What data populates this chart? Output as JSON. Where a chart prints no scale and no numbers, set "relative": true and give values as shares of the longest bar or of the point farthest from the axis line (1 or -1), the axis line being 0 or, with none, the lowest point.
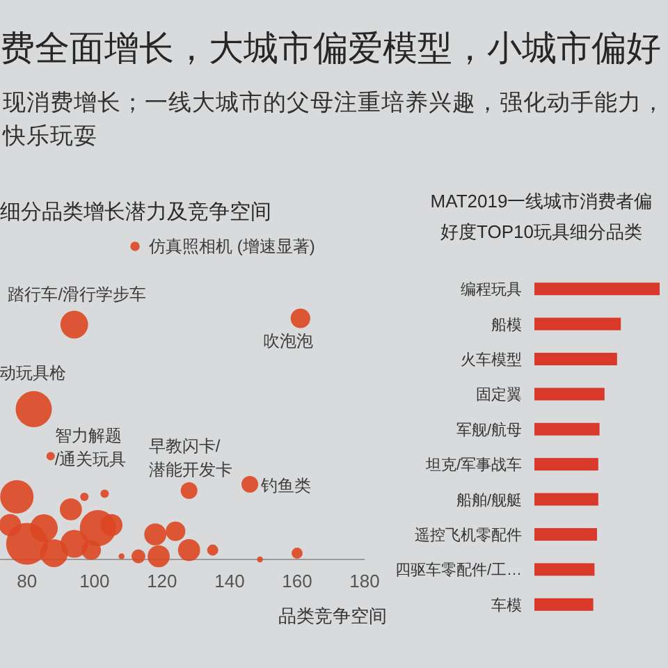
{
  "chart_data": [
    {
      "type": "other",
      "title": "费全面增长，大城市偏爱模型，小城市偏好",
      "subtitle": "现消费增长；一线大城市的父母注重培养兴趣，强化动手能力，快乐玩耍"
    },
    {
      "type": "bubble",
      "title": "细分品类增长潜力及竞争空间",
      "xlabel": "品类竞争空间",
      "relative": true,
      "color": "#dc4622",
      "x": [
        112,
        94,
        161,
        82,
        87,
        128,
        146,
        77,
        103,
        97,
        93,
        101,
        105,
        85,
        80,
        75,
        94,
        108,
        113,
        118,
        124,
        119,
        128,
        135,
        149,
        160,
        88,
        99
      ],
      "values": [
        1.0,
        0.75,
        0.77,
        0.48,
        0.33,
        0.22,
        0.24,
        0.2,
        0.21,
        0.2,
        0.16,
        0.1,
        0.11,
        0.1,
        0.05,
        0.11,
        0.05,
        0.01,
        0.01,
        0.08,
        0.09,
        0.01,
        0.03,
        0.03,
        0.0,
        0.02,
        0.02,
        0.03
      ],
      "sizes": [
        0.05,
        0.44,
        0.22,
        0.75,
        0.04,
        0.16,
        0.16,
        0.64,
        0.04,
        0.04,
        0.28,
        0.75,
        0.28,
        0.44,
        1.0,
        0.28,
        0.44,
        0.02,
        0.11,
        0.28,
        0.22,
        0.28,
        0.28,
        0.07,
        0.02,
        0.07,
        0.44,
        0.22
      ],
      "xlim": [
        72,
        180
      ],
      "xticks": [
        80,
        100,
        120,
        140,
        160,
        180
      ],
      "annotations": [
        {
          "text": "仿真照相机 (增速显著)",
          "x": 112,
          "y": 1.0
        },
        {
          "text": "踏行车/滑行学步车",
          "x": 94,
          "y": 0.75
        },
        {
          "text": "吹泡泡",
          "x": 161,
          "y": 0.77
        },
        {
          "text": "动玩具枪",
          "x": 82,
          "y": 0.48
        },
        {
          "text": "智力解题\n/通关玩具",
          "x": 87,
          "y": 0.33
        },
        {
          "text": "早教闪卡/\n潜能开发卡",
          "x": 128,
          "y": 0.22
        },
        {
          "text": "钓鱼类",
          "x": 146,
          "y": 0.24
        }
      ]
    },
    {
      "type": "bar",
      "orientation": "horizontal",
      "relative": true,
      "title": "MAT2019一线城市消费者偏好度TOP10玩具细分品类",
      "categories": [
        "编程玩具",
        "船模",
        "火车模型",
        "固定翼",
        "军舰/航母",
        "坦克/军事战车",
        "船舶/舰艇",
        "遥控飞机零配件",
        "四驱车零配件/工…",
        "车模"
      ],
      "values": [
        1.0,
        0.69,
        0.66,
        0.56,
        0.52,
        0.51,
        0.51,
        0.5,
        0.48,
        0.47
      ],
      "color": "#d8392a"
    }
  ]
}
